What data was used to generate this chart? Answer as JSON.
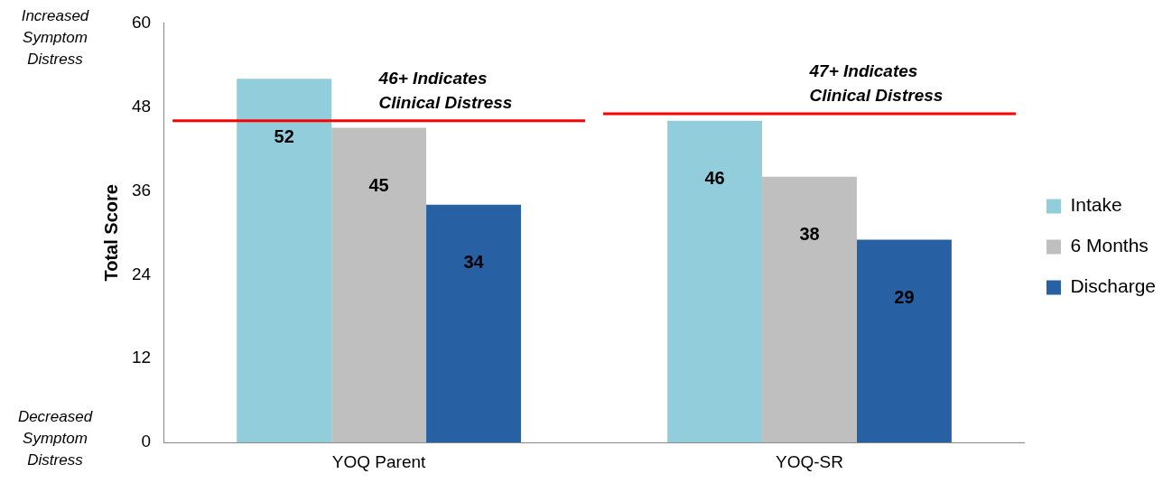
{
  "chart_data": {
    "type": "bar",
    "ylabel": "Total Score",
    "categories": [
      "YOQ Parent",
      "YOQ-SR"
    ],
    "series": [
      {
        "name": "Intake",
        "color": "#92cddc",
        "values": [
          52,
          46
        ]
      },
      {
        "name": "6 Months",
        "color": "#bfbfbf",
        "values": [
          45,
          38
        ]
      },
      {
        "name": "Discharge",
        "color": "#2860a4",
        "values": [
          34,
          29
        ]
      }
    ],
    "ylim": [
      0,
      60
    ],
    "yticks": [
      0,
      12,
      24,
      36,
      48,
      60
    ],
    "grid": false,
    "legend": "right",
    "data_labels": true,
    "ref_lines": [
      {
        "axis": "y",
        "value": 46,
        "label": "46+ Indicates Clinical Distress",
        "color": "#ff0000"
      },
      {
        "axis": "y",
        "value": 47,
        "label": "47+ Indicates Clinical Distress",
        "color": "#ff0000"
      }
    ],
    "annotations": [
      "Increased Symptom Distress",
      "Decreased Symptom Distress"
    ]
  }
}
